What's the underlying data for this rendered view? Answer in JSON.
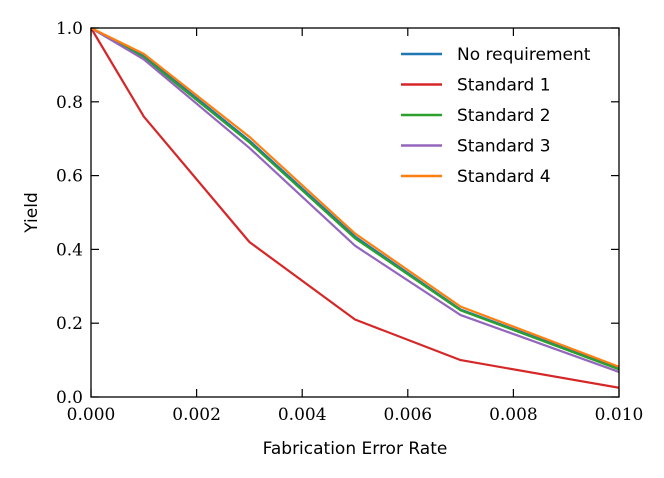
{
  "chart_data": {
    "type": "line",
    "title": "",
    "xlabel": "Fabrication Error Rate",
    "ylabel": "Yield",
    "xlim": [
      0,
      0.01
    ],
    "ylim": [
      0,
      1
    ],
    "xticks": [
      0,
      0.002,
      0.004,
      0.006,
      0.008,
      0.01
    ],
    "xtick_labels": [
      "0.000",
      "0.002",
      "0.004",
      "0.006",
      "0.008",
      "0.010"
    ],
    "yticks": [
      0,
      0.2,
      0.4,
      0.6,
      0.8,
      1.0
    ],
    "ytick_labels": [
      "0.0",
      "0.2",
      "0.4",
      "0.6",
      "0.8",
      "1.0"
    ],
    "grid": false,
    "legend_position": "top-right",
    "x": [
      0,
      0.001,
      0.003,
      0.005,
      0.007,
      0.01
    ],
    "series": [
      {
        "name": "No requirement",
        "color": "#1f77b4",
        "values": [
          1.0,
          0.925,
          0.695,
          0.435,
          0.237,
          0.078
        ]
      },
      {
        "name": "Standard 1",
        "color": "#d62728",
        "values": [
          1.0,
          0.76,
          0.42,
          0.21,
          0.1,
          0.025
        ]
      },
      {
        "name": "Standard 2",
        "color": "#2ca02c",
        "values": [
          1.0,
          0.92,
          0.69,
          0.43,
          0.235,
          0.075
        ]
      },
      {
        "name": "Standard 3",
        "color": "#9467bd",
        "values": [
          1.0,
          0.915,
          0.675,
          0.41,
          0.222,
          0.068
        ]
      },
      {
        "name": "Standard 4",
        "color": "#ff7f0e",
        "values": [
          1.0,
          0.93,
          0.705,
          0.443,
          0.245,
          0.082
        ]
      }
    ]
  }
}
